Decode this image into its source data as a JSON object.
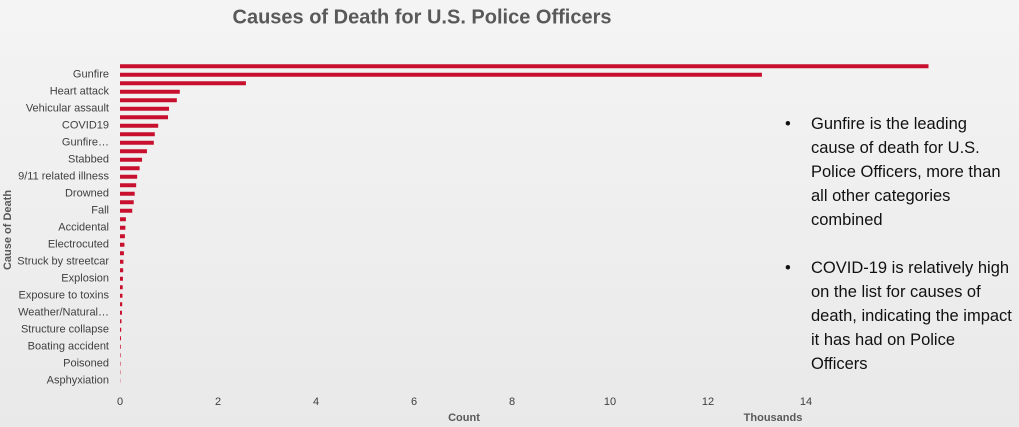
{
  "chart_data": {
    "type": "barh",
    "title": "Causes of Death for U.S. Police Officers",
    "x_label": "Count",
    "x_unit_label": "Thousands",
    "y_label": "Cause of Death",
    "color": "#c8102e",
    "categories": [
      null,
      "Gunfire",
      null,
      "Heart attack",
      null,
      "Vehicular assault",
      null,
      "COVID19",
      null,
      "Gunfire…",
      null,
      "Stabbed",
      null,
      "9/11 related illness",
      null,
      "Drowned",
      null,
      "Fall",
      null,
      "Accidental",
      null,
      "Electrocuted",
      null,
      "Struck by streetcar",
      null,
      "Explosion",
      null,
      "Exposure to toxins",
      null,
      "Weather/Natural…",
      null,
      "Structure collapse",
      null,
      "Boating accident",
      null,
      "Poisoned",
      null,
      "Asphyxiation"
    ],
    "values": [
      16.5,
      13.1,
      2.57,
      1.22,
      1.16,
      1.0,
      0.98,
      0.78,
      0.71,
      0.69,
      0.55,
      0.45,
      0.4,
      0.35,
      0.33,
      0.3,
      0.28,
      0.25,
      0.12,
      0.11,
      0.1,
      0.09,
      0.08,
      0.07,
      0.065,
      0.06,
      0.055,
      0.05,
      0.045,
      0.04,
      0.03,
      0.025,
      0.02,
      0.015,
      0.012,
      0.01,
      0.008,
      0.005
    ],
    "xlim": [
      0,
      16.5
    ],
    "xticks": [
      0,
      2,
      4,
      6,
      8,
      10,
      12,
      14
    ],
    "grid": false
  },
  "notes": [
    "Gunfire is the leading cause of death for U.S. Police Officers, more than all other categories combined",
    "COVID-19 is relatively high on the list for causes of death, indicating the impact it has had on Police Officers"
  ]
}
